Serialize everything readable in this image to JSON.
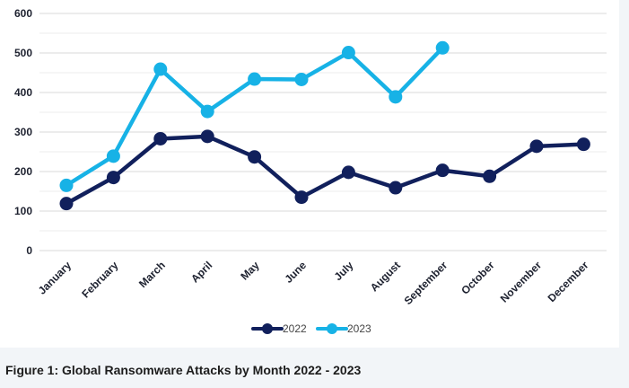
{
  "chart_data": {
    "type": "line",
    "title": "",
    "xlabel": "",
    "ylabel": "",
    "ylim": [
      0,
      600
    ],
    "yticks": [
      0,
      100,
      200,
      300,
      400,
      500,
      600
    ],
    "grid": true,
    "legend_position": "bottom",
    "categories": [
      "January",
      "February",
      "March",
      "April",
      "May",
      "June",
      "July",
      "August",
      "September",
      "October",
      "November",
      "December"
    ],
    "series": [
      {
        "name": "2022",
        "color": "#11205c",
        "values": [
          119,
          185,
          283,
          289,
          237,
          135,
          198,
          159,
          203,
          188,
          264,
          269
        ]
      },
      {
        "name": "2023",
        "color": "#17b2e6",
        "values": [
          165,
          239,
          459,
          352,
          434,
          433,
          501,
          389,
          513,
          null,
          null,
          null
        ]
      }
    ]
  },
  "caption": "Figure 1:  Global Ransomware Attacks by Month 2022 - 2023"
}
